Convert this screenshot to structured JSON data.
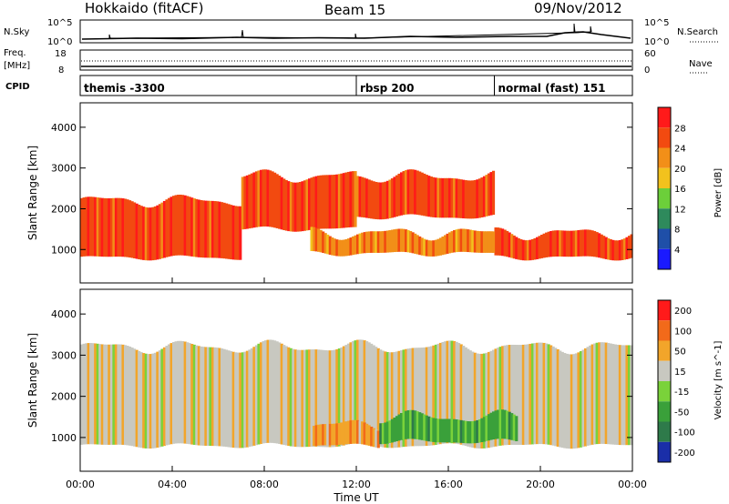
{
  "header": {
    "title": "Hokkaido (fitACF)",
    "beam": "Beam 15",
    "date": "09/Nov/2012"
  },
  "strips": {
    "noise_left_label": "N.Sky",
    "noise_right_label": "N.Search",
    "noise_left_ticks": [
      "10^5",
      "10^0"
    ],
    "noise_right_ticks": [
      "10^5",
      "10^0"
    ],
    "freq_label_1": "Freq.",
    "freq_label_2": "[MHz]",
    "freq_left_ticks": [
      "18",
      "8"
    ],
    "freq_right_ticks": [
      "60",
      "0"
    ],
    "nave_label": "Nave",
    "cpid_label": "CPID",
    "programs": [
      {
        "name": "themis -3300",
        "start_hour": 0
      },
      {
        "name": "rbsp 200",
        "start_hour": 12
      },
      {
        "name": "normal (fast) 151",
        "start_hour": 18
      }
    ]
  },
  "axes": {
    "x_label": "Time UT",
    "x_ticks": [
      "00:00",
      "04:00",
      "08:00",
      "12:00",
      "16:00",
      "20:00",
      "00:00"
    ],
    "y_label": "Slant Range [km]",
    "y_ticks": [
      "1000",
      "2000",
      "3000",
      "4000"
    ]
  },
  "power_colorbar": {
    "label": "Power [dB]",
    "ticks": [
      "4",
      "8",
      "12",
      "16",
      "20",
      "24",
      "28"
    ],
    "colors": [
      "#1a1aff",
      "#1f4fa8",
      "#2e8a5c",
      "#6ccf3a",
      "#f2c21d",
      "#f28f18",
      "#f24a10",
      "#ff1a1a"
    ]
  },
  "velocity_colorbar": {
    "label": "Velocity [m s^-1]",
    "ticks": [
      "200",
      "100",
      "50",
      "15",
      "-15",
      "-50",
      "-100",
      "-200"
    ],
    "colors": [
      "#1a2ea8",
      "#2e7a4a",
      "#3aa03a",
      "#7ad23a",
      "#c8c8c0",
      "#f2a52a",
      "#f26a1a",
      "#ff1a1a"
    ]
  },
  "chart_data": [
    {
      "type": "heatmap",
      "title": "Power",
      "xlabel": "Time UT",
      "ylabel": "Slant Range [km]",
      "xlim_hours": [
        0,
        24
      ],
      "ylim_km": [
        180,
        4600
      ],
      "colorbar": "Power [dB]",
      "echo_bands": [
        {
          "t0": 0,
          "t1": 7,
          "r0": 800,
          "r1": 2200,
          "level": 6
        },
        {
          "t0": 7,
          "t1": 12,
          "r0": 1500,
          "r1": 2800,
          "level": 6
        },
        {
          "t0": 12,
          "t1": 18,
          "r0": 1800,
          "r1": 2800,
          "level": 6
        },
        {
          "t0": 18,
          "t1": 24,
          "r0": 800,
          "r1": 1400,
          "level": 6
        },
        {
          "t0": 10,
          "t1": 18,
          "r0": 900,
          "r1": 1400,
          "level": 5
        }
      ]
    },
    {
      "type": "heatmap",
      "title": "Velocity",
      "xlabel": "Time UT",
      "ylabel": "Slant Range [km]",
      "xlim_hours": [
        0,
        24
      ],
      "ylim_km": [
        180,
        4600
      ],
      "colorbar": "Velocity [m s^-1]",
      "echo_bands": [
        {
          "t0": 0,
          "t1": 24,
          "r0": 800,
          "r1": 3200,
          "level": 4
        },
        {
          "t0": 10,
          "t1": 13,
          "r0": 800,
          "r1": 1300,
          "level": 5
        },
        {
          "t0": 13,
          "t1": 19,
          "r0": 900,
          "r1": 1500,
          "level": 2
        }
      ]
    }
  ]
}
